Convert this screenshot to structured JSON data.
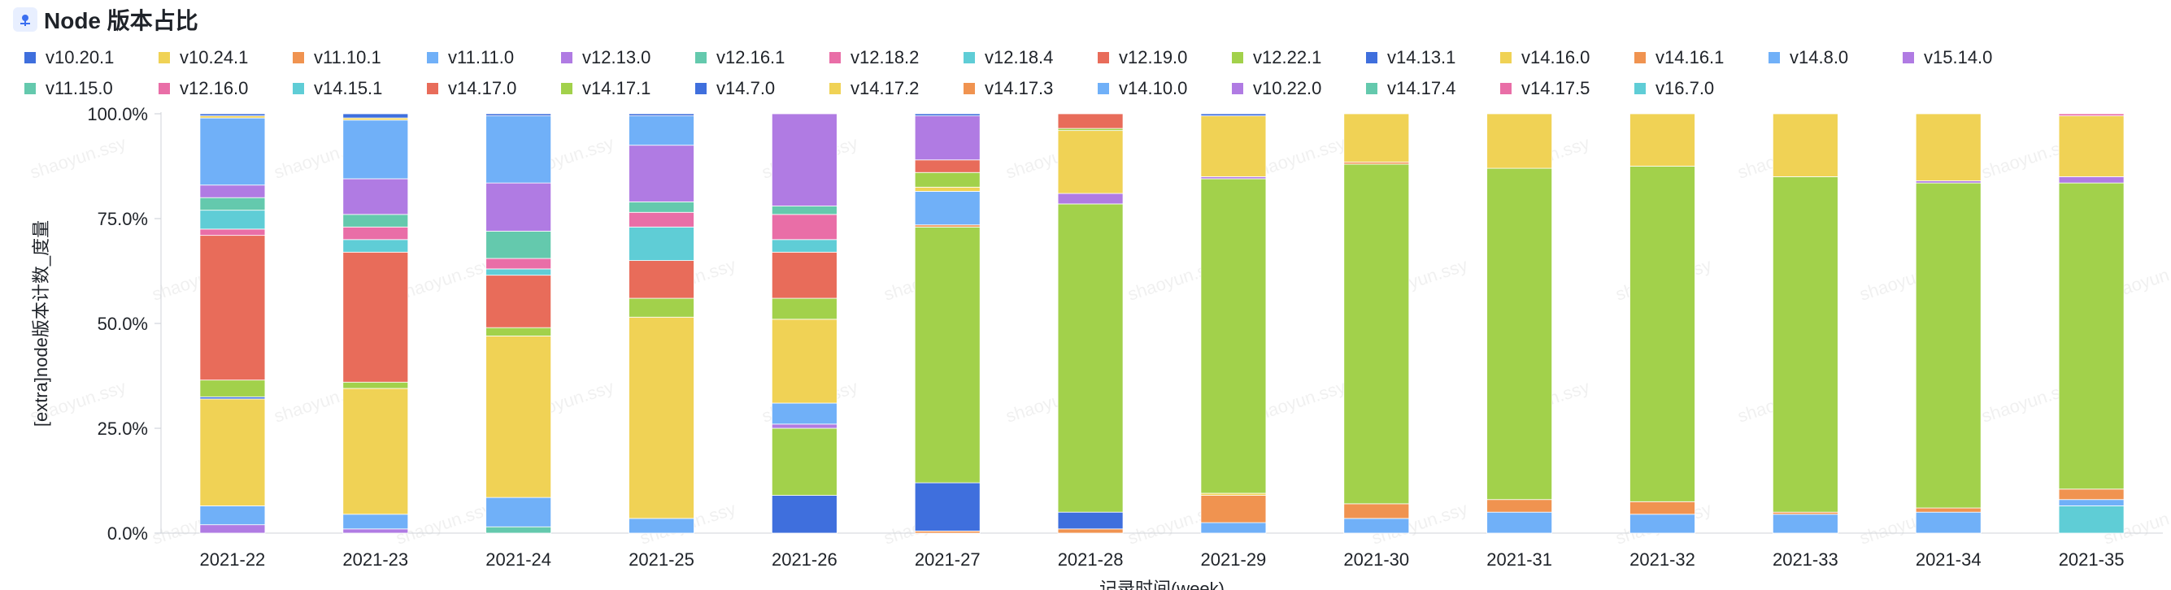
{
  "title": "Node 版本占比",
  "chart_data": {
    "type": "bar",
    "stacked": true,
    "percent": true,
    "title": "Node 版本占比",
    "xlabel": "记录时间(week)",
    "ylabel": "[extra]node版本计数_度量",
    "ylim": [
      0,
      100
    ],
    "yticks": [
      "0.0%",
      "25.0%",
      "50.0%",
      "75.0%",
      "100.0%"
    ],
    "legend_position": "top",
    "watermark": "shaoyun.ssy",
    "categories": [
      "2021-22",
      "2021-23",
      "2021-24",
      "2021-25",
      "2021-26",
      "2021-27",
      "2021-28",
      "2021-29",
      "2021-30",
      "2021-31",
      "2021-32",
      "2021-33",
      "2021-34",
      "2021-35"
    ],
    "series": [
      {
        "name": "v10.20.1",
        "color": "#3f6fdd",
        "values": [
          0,
          0,
          0,
          0,
          0,
          0,
          0,
          0,
          0,
          0,
          0,
          0,
          0,
          0
        ]
      },
      {
        "name": "v10.24.1",
        "color": "#f0d255",
        "values": [
          0,
          0,
          0,
          0,
          0,
          0,
          0,
          0,
          0,
          0,
          0,
          0,
          0,
          0
        ]
      },
      {
        "name": "v11.10.1",
        "color": "#f09350",
        "values": [
          0,
          0,
          0,
          0,
          0,
          0,
          0,
          0,
          0,
          0,
          0,
          0,
          0,
          0
        ]
      },
      {
        "name": "v11.11.0",
        "color": "#70b0f8",
        "values": [
          0,
          0,
          0,
          0,
          0,
          0,
          0,
          0,
          0,
          0,
          0,
          0,
          0,
          0
        ]
      },
      {
        "name": "v12.13.0",
        "color": "#b07be3",
        "values": [
          0,
          0,
          0,
          0,
          0,
          0,
          0,
          0,
          0,
          0,
          0,
          0,
          0,
          0
        ]
      },
      {
        "name": "v12.16.1",
        "color": "#64c9ad",
        "values": [
          0,
          0,
          0,
          0,
          0,
          0,
          0,
          0,
          0,
          0,
          0,
          0,
          0,
          0
        ]
      },
      {
        "name": "v12.18.2",
        "color": "#e96ea7",
        "values": [
          0,
          0,
          0,
          0,
          0,
          0,
          0,
          0,
          0,
          0,
          0,
          0,
          0,
          0
        ]
      },
      {
        "name": "v12.18.4",
        "color": "#5fcdd6",
        "values": [
          0,
          0,
          0,
          0,
          0,
          0,
          0,
          0,
          0,
          0,
          0,
          0,
          0,
          0
        ]
      },
      {
        "name": "v12.19.0",
        "color": "#e86c5a",
        "values": [
          0,
          0,
          0,
          0,
          0,
          0,
          0,
          0,
          0,
          0,
          0,
          0,
          0,
          0
        ]
      },
      {
        "name": "v12.22.1",
        "color": "#a2d14b",
        "values": [
          0,
          0,
          0,
          0,
          0,
          0,
          0,
          0,
          0,
          0,
          0,
          0,
          0,
          0
        ]
      },
      {
        "name": "v14.13.1",
        "color": "#3f6fdd",
        "values": [
          0,
          0,
          0,
          0,
          0,
          0,
          0,
          0,
          0,
          0,
          0,
          0,
          0,
          0
        ]
      },
      {
        "name": "v14.16.0",
        "color": "#f0d255",
        "values": [
          0,
          0,
          0,
          0,
          0,
          0,
          0,
          0,
          0,
          0,
          0,
          0,
          0,
          0
        ]
      },
      {
        "name": "v14.16.1",
        "color": "#f09350",
        "values": [
          0,
          0,
          0,
          0,
          0,
          0,
          0,
          0,
          0,
          0,
          0,
          0,
          0,
          0
        ]
      },
      {
        "name": "v14.8.0",
        "color": "#70b0f8",
        "values": [
          0,
          0,
          0,
          0,
          0,
          0,
          0,
          0,
          0,
          0,
          0,
          0,
          0,
          0
        ]
      },
      {
        "name": "v15.14.0",
        "color": "#b07be3",
        "values": [
          0,
          0,
          0,
          0,
          0,
          0,
          0,
          0,
          0,
          0,
          0,
          0,
          0,
          0
        ]
      },
      {
        "name": "v11.15.0",
        "color": "#64c9ad",
        "values": [
          0,
          0,
          0,
          0,
          0,
          0,
          0,
          0,
          0,
          0,
          0,
          0,
          0,
          0
        ]
      },
      {
        "name": "v12.16.0",
        "color": "#e96ea7",
        "values": [
          0,
          0,
          0,
          0,
          0,
          0,
          0,
          0,
          0,
          0,
          0,
          0,
          0,
          0
        ]
      },
      {
        "name": "v14.15.1",
        "color": "#5fcdd6",
        "values": [
          0,
          0,
          0,
          0,
          0,
          0,
          0,
          0,
          0,
          0,
          0,
          0,
          0,
          0
        ]
      },
      {
        "name": "v14.17.0",
        "color": "#e86c5a",
        "values": [
          0,
          0,
          0,
          0,
          0,
          0,
          0,
          0,
          0,
          0,
          0,
          0,
          0,
          0
        ]
      },
      {
        "name": "v14.17.1",
        "color": "#a2d14b",
        "values": [
          0,
          0,
          0,
          0,
          0,
          0,
          0,
          0,
          0,
          0,
          0,
          0,
          0,
          0
        ]
      },
      {
        "name": "v14.7.0",
        "color": "#3f6fdd",
        "values": [
          0,
          0,
          0,
          0,
          0,
          0,
          0,
          0,
          0,
          0,
          0,
          0,
          0,
          0
        ]
      },
      {
        "name": "v14.17.2",
        "color": "#f0d255",
        "values": [
          0,
          0,
          0,
          0,
          0,
          0,
          0,
          0,
          0,
          0,
          0,
          0,
          0,
          0
        ]
      },
      {
        "name": "v14.17.3",
        "color": "#f09350",
        "values": [
          0,
          0,
          0,
          0,
          0,
          0,
          0,
          0,
          0,
          0,
          0,
          0,
          0,
          0
        ]
      },
      {
        "name": "v14.10.0",
        "color": "#70b0f8",
        "values": [
          0,
          0,
          0,
          0,
          0,
          0,
          0,
          0,
          0,
          0,
          0,
          0,
          0,
          0
        ]
      },
      {
        "name": "v10.22.0",
        "color": "#b07be3",
        "values": [
          0,
          0,
          0,
          0,
          0,
          0,
          0,
          0,
          0,
          0,
          0,
          0,
          0,
          0
        ]
      },
      {
        "name": "v14.17.4",
        "color": "#64c9ad",
        "values": [
          0,
          0,
          0,
          0,
          0,
          0,
          0,
          0,
          0,
          0,
          0,
          0,
          0,
          0
        ]
      },
      {
        "name": "v14.17.5",
        "color": "#e96ea7",
        "values": [
          0,
          0,
          0,
          0,
          0,
          0,
          0,
          0,
          0,
          0,
          0,
          0,
          0,
          0
        ]
      },
      {
        "name": "v16.7.0",
        "color": "#5fcdd6",
        "values": [
          0,
          0,
          0,
          0,
          0,
          0,
          0,
          0,
          0,
          0,
          0,
          0,
          0,
          0
        ]
      }
    ],
    "stacks": [
      [
        {
          "c": "#b07be3",
          "v": 2
        },
        {
          "c": "#70b0f8",
          "v": 4.5
        },
        {
          "c": "#f0d255",
          "v": 25.5
        },
        {
          "c": "#3f6fdd",
          "v": 0.5
        },
        {
          "c": "#a2d14b",
          "v": 4
        },
        {
          "c": "#e86c5a",
          "v": 34.5
        },
        {
          "c": "#e96ea7",
          "v": 1.5
        },
        {
          "c": "#5fcdd6",
          "v": 4.5
        },
        {
          "c": "#64c9ad",
          "v": 3
        },
        {
          "c": "#b07be3",
          "v": 3
        },
        {
          "c": "#70b0f8",
          "v": 16
        },
        {
          "c": "#f0d255",
          "v": 0.5
        },
        {
          "c": "#3f6fdd",
          "v": 0.5
        }
      ],
      [
        {
          "c": "#b07be3",
          "v": 1
        },
        {
          "c": "#70b0f8",
          "v": 3.5
        },
        {
          "c": "#f0d255",
          "v": 30
        },
        {
          "c": "#a2d14b",
          "v": 1.5
        },
        {
          "c": "#e86c5a",
          "v": 31
        },
        {
          "c": "#5fcdd6",
          "v": 3
        },
        {
          "c": "#e96ea7",
          "v": 3
        },
        {
          "c": "#64c9ad",
          "v": 3
        },
        {
          "c": "#b07be3",
          "v": 8.5
        },
        {
          "c": "#70b0f8",
          "v": 14
        },
        {
          "c": "#f0d255",
          "v": 0.5
        },
        {
          "c": "#3f6fdd",
          "v": 1
        }
      ],
      [
        {
          "c": "#64c9ad",
          "v": 1.5
        },
        {
          "c": "#70b0f8",
          "v": 7
        },
        {
          "c": "#f0d255",
          "v": 38.5
        },
        {
          "c": "#a2d14b",
          "v": 2
        },
        {
          "c": "#e86c5a",
          "v": 12.5
        },
        {
          "c": "#5fcdd6",
          "v": 1.5
        },
        {
          "c": "#e96ea7",
          "v": 2.5
        },
        {
          "c": "#64c9ad",
          "v": 6.5
        },
        {
          "c": "#b07be3",
          "v": 11.5
        },
        {
          "c": "#70b0f8",
          "v": 16
        },
        {
          "c": "#3f6fdd",
          "v": 0.5
        }
      ],
      [
        {
          "c": "#70b0f8",
          "v": 3.5
        },
        {
          "c": "#f0d255",
          "v": 48
        },
        {
          "c": "#a2d14b",
          "v": 4.5
        },
        {
          "c": "#e86c5a",
          "v": 9
        },
        {
          "c": "#5fcdd6",
          "v": 8
        },
        {
          "c": "#e96ea7",
          "v": 3.5
        },
        {
          "c": "#64c9ad",
          "v": 2.5
        },
        {
          "c": "#b07be3",
          "v": 13.5
        },
        {
          "c": "#70b0f8",
          "v": 7
        },
        {
          "c": "#3f6fdd",
          "v": 0.5
        }
      ],
      [
        {
          "c": "#3f6fdd",
          "v": 9
        },
        {
          "c": "#a2d14b",
          "v": 16
        },
        {
          "c": "#b07be3",
          "v": 1
        },
        {
          "c": "#70b0f8",
          "v": 5
        },
        {
          "c": "#f0d255",
          "v": 20
        },
        {
          "c": "#a2d14b",
          "v": 5
        },
        {
          "c": "#e86c5a",
          "v": 11
        },
        {
          "c": "#5fcdd6",
          "v": 3
        },
        {
          "c": "#e96ea7",
          "v": 6
        },
        {
          "c": "#64c9ad",
          "v": 2
        },
        {
          "c": "#b07be3",
          "v": 22
        }
      ],
      [
        {
          "c": "#f09350",
          "v": 0.5
        },
        {
          "c": "#3f6fdd",
          "v": 11.5
        },
        {
          "c": "#a2d14b",
          "v": 61
        },
        {
          "c": "#f09350",
          "v": 0.5
        },
        {
          "c": "#70b0f8",
          "v": 8
        },
        {
          "c": "#f0d255",
          "v": 1
        },
        {
          "c": "#a2d14b",
          "v": 3.5
        },
        {
          "c": "#e86c5a",
          "v": 3
        },
        {
          "c": "#b07be3",
          "v": 10.5
        },
        {
          "c": "#3f6fdd",
          "v": 0.5
        }
      ],
      [
        {
          "c": "#f09350",
          "v": 1
        },
        {
          "c": "#3f6fdd",
          "v": 4
        },
        {
          "c": "#a2d14b",
          "v": 73.5
        },
        {
          "c": "#b07be3",
          "v": 2.5
        },
        {
          "c": "#f0d255",
          "v": 15
        },
        {
          "c": "#a2d14b",
          "v": 0.5
        },
        {
          "c": "#e86c5a",
          "v": 3.5
        }
      ],
      [
        {
          "c": "#70b0f8",
          "v": 2.5
        },
        {
          "c": "#f09350",
          "v": 6.5
        },
        {
          "c": "#f0d255",
          "v": 0.5
        },
        {
          "c": "#a2d14b",
          "v": 75
        },
        {
          "c": "#b07be3",
          "v": 0.5
        },
        {
          "c": "#f0d255",
          "v": 14.5
        },
        {
          "c": "#3f6fdd",
          "v": 0.5
        }
      ],
      [
        {
          "c": "#70b0f8",
          "v": 3.5
        },
        {
          "c": "#f09350",
          "v": 3.5
        },
        {
          "c": "#a2d14b",
          "v": 81
        },
        {
          "c": "#f09350",
          "v": 0.5
        },
        {
          "c": "#f0d255",
          "v": 11.5
        }
      ],
      [
        {
          "c": "#70b0f8",
          "v": 5
        },
        {
          "c": "#f09350",
          "v": 3
        },
        {
          "c": "#a2d14b",
          "v": 79
        },
        {
          "c": "#f0d255",
          "v": 13
        }
      ],
      [
        {
          "c": "#70b0f8",
          "v": 4.5
        },
        {
          "c": "#f09350",
          "v": 3
        },
        {
          "c": "#a2d14b",
          "v": 80
        },
        {
          "c": "#f0d255",
          "v": 12.5
        }
      ],
      [
        {
          "c": "#70b0f8",
          "v": 4.5
        },
        {
          "c": "#f09350",
          "v": 0.5
        },
        {
          "c": "#a2d14b",
          "v": 80
        },
        {
          "c": "#f0d255",
          "v": 15
        }
      ],
      [
        {
          "c": "#70b0f8",
          "v": 5
        },
        {
          "c": "#f09350",
          "v": 1
        },
        {
          "c": "#a2d14b",
          "v": 77.5
        },
        {
          "c": "#b07be3",
          "v": 0.5
        },
        {
          "c": "#f0d255",
          "v": 16
        }
      ],
      [
        {
          "c": "#5fcdd6",
          "v": 6.5
        },
        {
          "c": "#70b0f8",
          "v": 1.5
        },
        {
          "c": "#f09350",
          "v": 2.5
        },
        {
          "c": "#a2d14b",
          "v": 73
        },
        {
          "c": "#b07be3",
          "v": 1.5
        },
        {
          "c": "#f0d255",
          "v": 14.5
        },
        {
          "c": "#e96ea7",
          "v": 0.5
        }
      ]
    ]
  }
}
